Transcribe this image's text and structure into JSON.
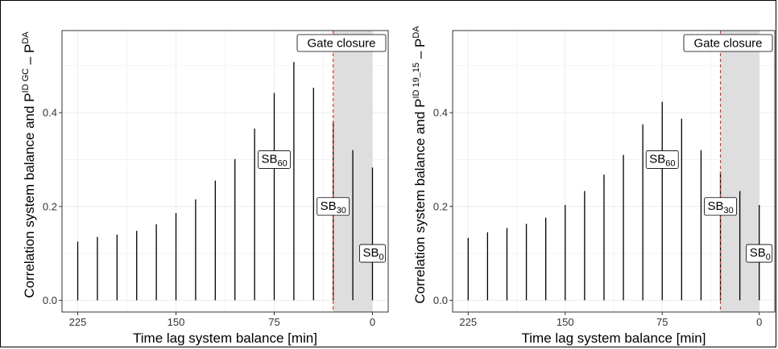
{
  "chart_data": [
    {
      "type": "bar",
      "panel": "left",
      "x": [
        225,
        210,
        195,
        180,
        165,
        150,
        135,
        120,
        105,
        90,
        75,
        60,
        45,
        30,
        15,
        0
      ],
      "values": [
        0.125,
        0.135,
        0.14,
        0.148,
        0.162,
        0.186,
        0.215,
        0.255,
        0.301,
        0.366,
        0.442,
        0.508,
        0.453,
        0.381,
        0.32,
        0.283
      ],
      "xlabel": "Time lag system balance [min]",
      "ylabel": {
        "main": "Correlation system balance and P",
        "sup": "ID GC",
        "dash": " – P",
        "sup2": "DA"
      },
      "xticks": [
        "225",
        "150",
        "75",
        "0"
      ],
      "yticks": [
        "0.0",
        "0.2",
        "0.4"
      ],
      "xlim": [
        237,
        -12
      ],
      "ylim": [
        -0.025,
        0.575
      ],
      "gate_closure_x": 30,
      "shaded_x": [
        30,
        0
      ],
      "annotations": [
        {
          "base": "SB",
          "sub": "60",
          "x": 75,
          "y": 0.3
        },
        {
          "base": "SB",
          "sub": "30",
          "x": 30,
          "y": 0.2
        },
        {
          "base": "SB",
          "sub": "0",
          "x": 0,
          "y": 0.1
        }
      ],
      "gate_label": "Gate closure",
      "grid": true
    },
    {
      "type": "bar",
      "panel": "right",
      "x": [
        225,
        210,
        195,
        180,
        165,
        150,
        135,
        120,
        105,
        90,
        75,
        60,
        45,
        30,
        15,
        0
      ],
      "values": [
        0.133,
        0.145,
        0.154,
        0.163,
        0.176,
        0.203,
        0.233,
        0.268,
        0.31,
        0.375,
        0.423,
        0.387,
        0.32,
        0.272,
        0.233,
        0.203
      ],
      "xlabel": "Time lag system balance [min]",
      "ylabel": {
        "main": "Correlation system balance and P",
        "sup": "ID 19_15",
        "dash": " – P",
        "sup2": "DA"
      },
      "xticks": [
        "225",
        "150",
        "75",
        "0"
      ],
      "yticks": [
        "0.0",
        "0.2",
        "0.4"
      ],
      "xlim": [
        237,
        -12
      ],
      "ylim": [
        -0.025,
        0.575
      ],
      "gate_closure_x": 30,
      "shaded_x": [
        30,
        0
      ],
      "annotations": [
        {
          "base": "SB",
          "sub": "60",
          "x": 75,
          "y": 0.3
        },
        {
          "base": "SB",
          "sub": "30",
          "x": 30,
          "y": 0.2
        },
        {
          "base": "SB",
          "sub": "0",
          "x": 0,
          "y": 0.1
        }
      ],
      "gate_label": "Gate closure",
      "grid": true
    }
  ],
  "colors": {
    "bar": "#000000",
    "gate_line": "#e8352a",
    "shade": "#dedede",
    "grid": "#ebebeb",
    "panel_border": "#333333"
  }
}
